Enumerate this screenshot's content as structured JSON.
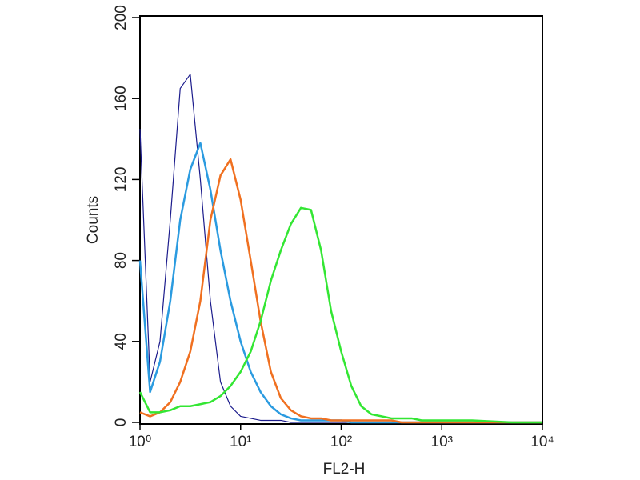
{
  "chart_data": {
    "type": "line",
    "xscale": "log",
    "xlabel": "FL2-H",
    "ylabel": "Counts",
    "x": [
      1,
      1.26,
      1.58,
      2,
      2.51,
      3.16,
      3.98,
      5.01,
      6.31,
      7.94,
      10,
      12.6,
      15.8,
      20,
      25.1,
      31.6,
      39.8,
      50.1,
      63.1,
      79.4,
      100,
      126,
      158,
      200,
      251,
      316,
      398,
      501,
      631,
      794,
      1000,
      2000,
      5000,
      10000
    ],
    "series": [
      {
        "color": "#1c1c8c",
        "width": 1.2,
        "values": [
          145,
          20,
          40,
          100,
          165,
          172,
          120,
          60,
          20,
          8,
          3,
          2,
          1,
          1,
          1,
          0,
          0,
          0,
          0,
          0,
          0,
          0,
          0,
          0,
          0,
          0,
          0,
          0,
          0,
          0,
          0,
          0,
          0,
          0
        ]
      },
      {
        "color": "#2b9be0",
        "width": 2.5,
        "values": [
          80,
          15,
          30,
          60,
          100,
          125,
          138,
          115,
          85,
          60,
          40,
          25,
          15,
          8,
          4,
          2,
          1,
          1,
          1,
          1,
          1,
          0,
          0,
          0,
          0,
          0,
          0,
          0,
          0,
          0,
          0,
          0,
          0,
          0
        ]
      },
      {
        "color": "#f07020",
        "width": 2.5,
        "values": [
          5,
          3,
          5,
          10,
          20,
          35,
          60,
          100,
          122,
          130,
          110,
          80,
          50,
          25,
          12,
          6,
          3,
          2,
          2,
          1,
          1,
          1,
          1,
          1,
          1,
          1,
          0,
          0,
          0,
          0,
          0,
          0,
          0,
          0
        ]
      },
      {
        "color": "#33e633",
        "width": 2.5,
        "values": [
          15,
          5,
          5,
          6,
          8,
          8,
          9,
          10,
          13,
          18,
          25,
          35,
          50,
          70,
          85,
          98,
          106,
          105,
          85,
          55,
          35,
          18,
          8,
          4,
          3,
          2,
          2,
          2,
          1,
          1,
          1,
          1,
          0,
          0
        ]
      }
    ],
    "xlim": [
      1,
      10000
    ],
    "xticks": [
      {
        "value": 1,
        "label": "10⁰"
      },
      {
        "value": 10,
        "label": "10¹"
      },
      {
        "value": 100,
        "label": "10²"
      },
      {
        "value": 1000,
        "label": "10³"
      },
      {
        "value": 10000,
        "label": "10⁴"
      }
    ],
    "ylim": [
      0,
      200
    ],
    "yticks": [
      0,
      40,
      80,
      120,
      160,
      200
    ]
  }
}
